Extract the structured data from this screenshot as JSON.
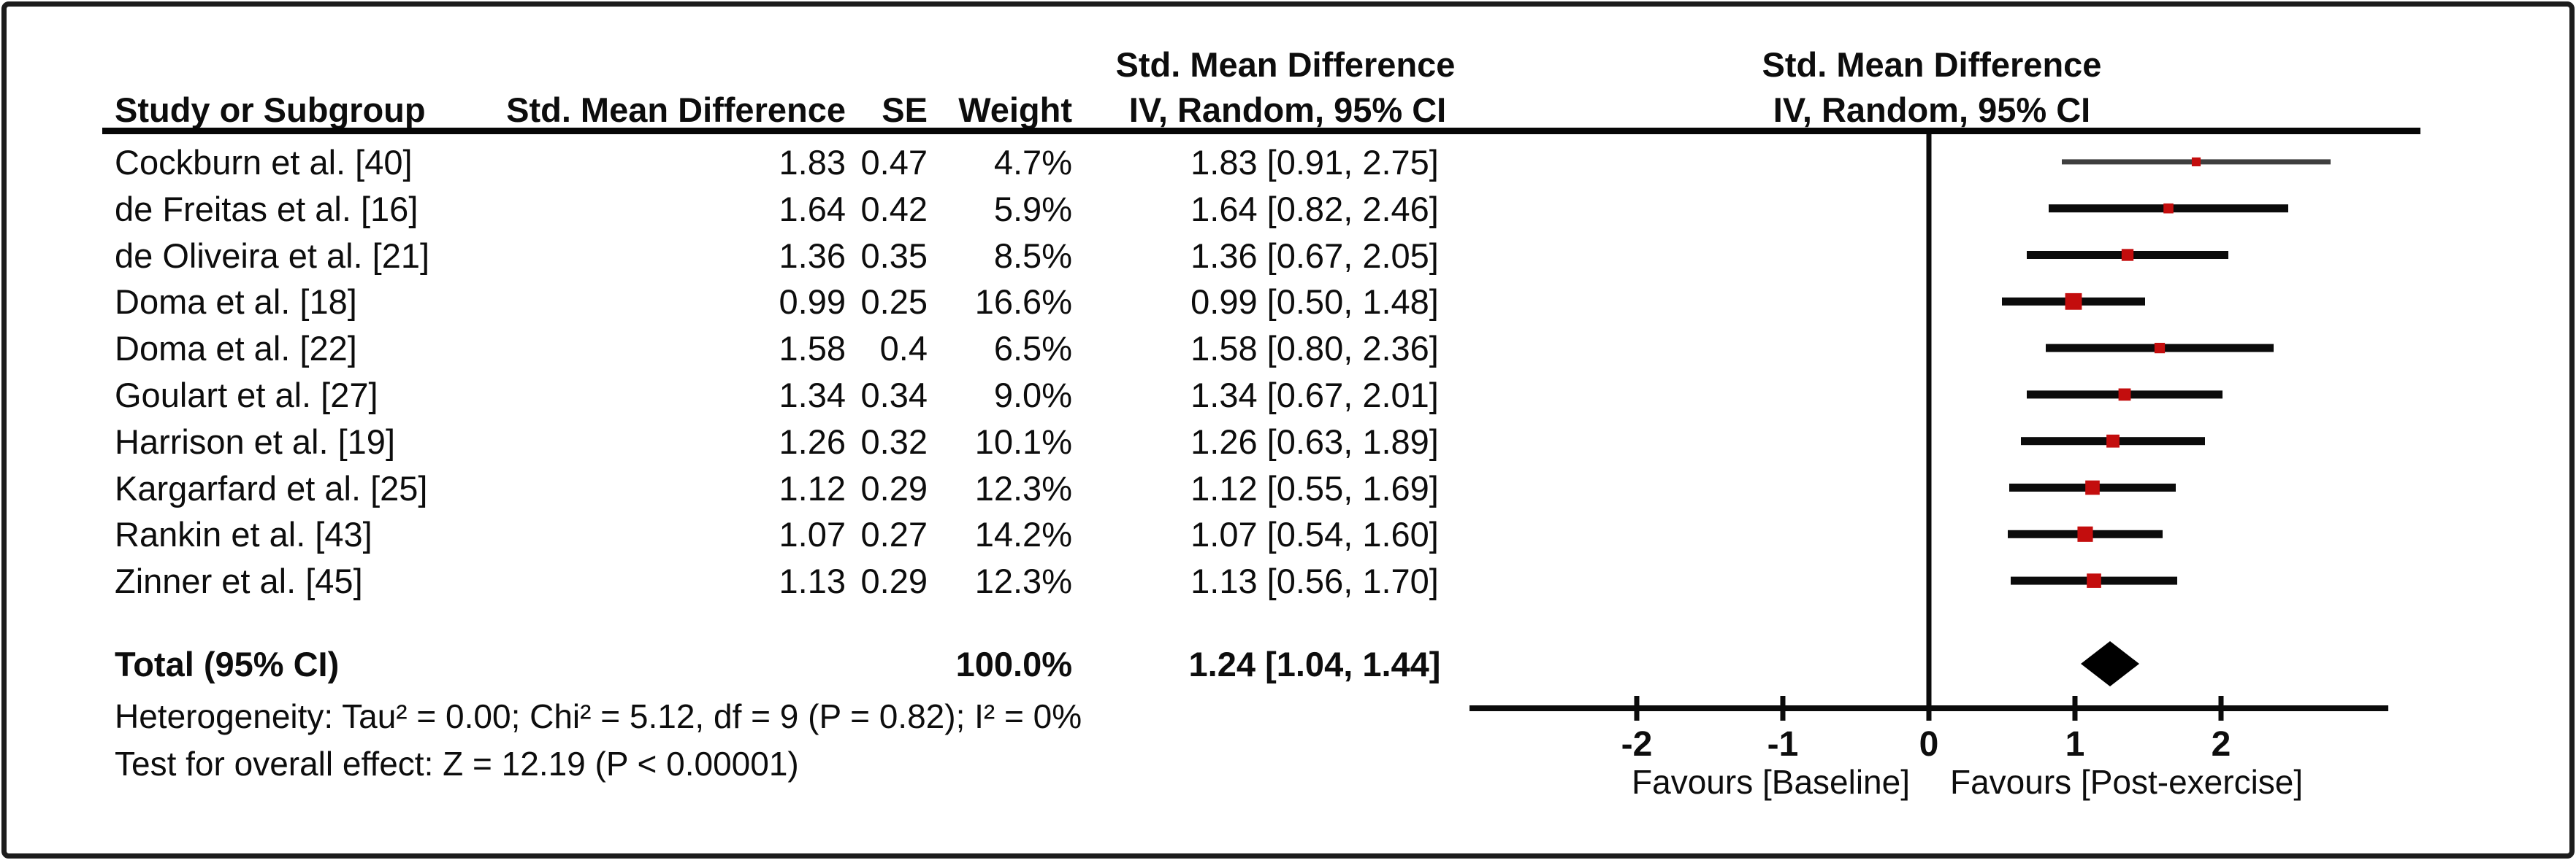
{
  "table_headers": {
    "effect_top": "Std. Mean Difference",
    "study": "Study or Subgroup",
    "effect": "Std. Mean Difference",
    "se": "SE",
    "weight": "Weight",
    "ci": "IV, Random, 95% CI",
    "plot_effect_top": "Std. Mean Difference",
    "plot_ci": "IV, Random, 95% CI"
  },
  "chart_data": {
    "type": "forest",
    "effect_measure": "Std. Mean Difference",
    "model": "IV, Random, 95% CI",
    "rows": [
      {
        "study": "Cockburn et al. [40]",
        "smd": "1.83",
        "se": "0.47",
        "weight": "4.7%",
        "ci_text": "1.83 [0.91, 2.75]",
        "est": 1.83,
        "lower": 0.91,
        "upper": 2.75,
        "weight_pct": 4.7
      },
      {
        "study": "de Freitas et al. [16]",
        "smd": "1.64",
        "se": "0.42",
        "weight": "5.9%",
        "ci_text": "1.64 [0.82, 2.46]",
        "est": 1.64,
        "lower": 0.82,
        "upper": 2.46,
        "weight_pct": 5.9
      },
      {
        "study": "de Oliveira et al. [21]",
        "smd": "1.36",
        "se": "0.35",
        "weight": "8.5%",
        "ci_text": "1.36 [0.67, 2.05]",
        "est": 1.36,
        "lower": 0.67,
        "upper": 2.05,
        "weight_pct": 8.5
      },
      {
        "study": "Doma et al. [18]",
        "smd": "0.99",
        "se": "0.25",
        "weight": "16.6%",
        "ci_text": "0.99 [0.50, 1.48]",
        "est": 0.99,
        "lower": 0.5,
        "upper": 1.48,
        "weight_pct": 16.6
      },
      {
        "study": "Doma et al. [22]",
        "smd": "1.58",
        "se": "0.4",
        "weight": "6.5%",
        "ci_text": "1.58 [0.80, 2.36]",
        "est": 1.58,
        "lower": 0.8,
        "upper": 2.36,
        "weight_pct": 6.5
      },
      {
        "study": "Goulart et al. [27]",
        "smd": "1.34",
        "se": "0.34",
        "weight": "9.0%",
        "ci_text": "1.34 [0.67, 2.01]",
        "est": 1.34,
        "lower": 0.67,
        "upper": 2.01,
        "weight_pct": 9.0
      },
      {
        "study": "Harrison et al. [19]",
        "smd": "1.26",
        "se": "0.32",
        "weight": "10.1%",
        "ci_text": "1.26 [0.63, 1.89]",
        "est": 1.26,
        "lower": 0.63,
        "upper": 1.89,
        "weight_pct": 10.1
      },
      {
        "study": "Kargarfard et al. [25]",
        "smd": "1.12",
        "se": "0.29",
        "weight": "12.3%",
        "ci_text": "1.12 [0.55, 1.69]",
        "est": 1.12,
        "lower": 0.55,
        "upper": 1.69,
        "weight_pct": 12.3
      },
      {
        "study": "Rankin et al. [43]",
        "smd": "1.07",
        "se": "0.27",
        "weight": "14.2%",
        "ci_text": "1.07 [0.54, 1.60]",
        "est": 1.07,
        "lower": 0.54,
        "upper": 1.6,
        "weight_pct": 14.2
      },
      {
        "study": "Zinner et al. [45]",
        "smd": "1.13",
        "se": "0.29",
        "weight": "12.3%",
        "ci_text": "1.13 [0.56, 1.70]",
        "est": 1.13,
        "lower": 0.56,
        "upper": 1.7,
        "weight_pct": 12.3
      }
    ],
    "total": {
      "label": "Total (95% CI)",
      "weight": "100.0%",
      "ci_text": "1.24 [1.04, 1.44]",
      "est": 1.24,
      "lower": 1.04,
      "upper": 1.44
    },
    "heterogeneity": "Heterogeneity: Tau² = 0.00; Chi² = 5.12, df = 9 (P = 0.82); I² = 0%",
    "overall_effect": "Test for overall effect: Z = 12.19 (P < 0.00001)",
    "axis": {
      "ticks": [
        -2,
        -1,
        0,
        1,
        2
      ],
      "range": [
        -3.15,
        3.15
      ],
      "favours_left": "Favours [Baseline]",
      "favours_right": "Favours [Post-exercise]"
    },
    "colors": {
      "marker": "#c30d0d",
      "ci_line": "#0b0b0b",
      "first_row_ci_line": "#3f3f3f",
      "diamond": "#000000",
      "axis": "#0b0b0b"
    }
  }
}
